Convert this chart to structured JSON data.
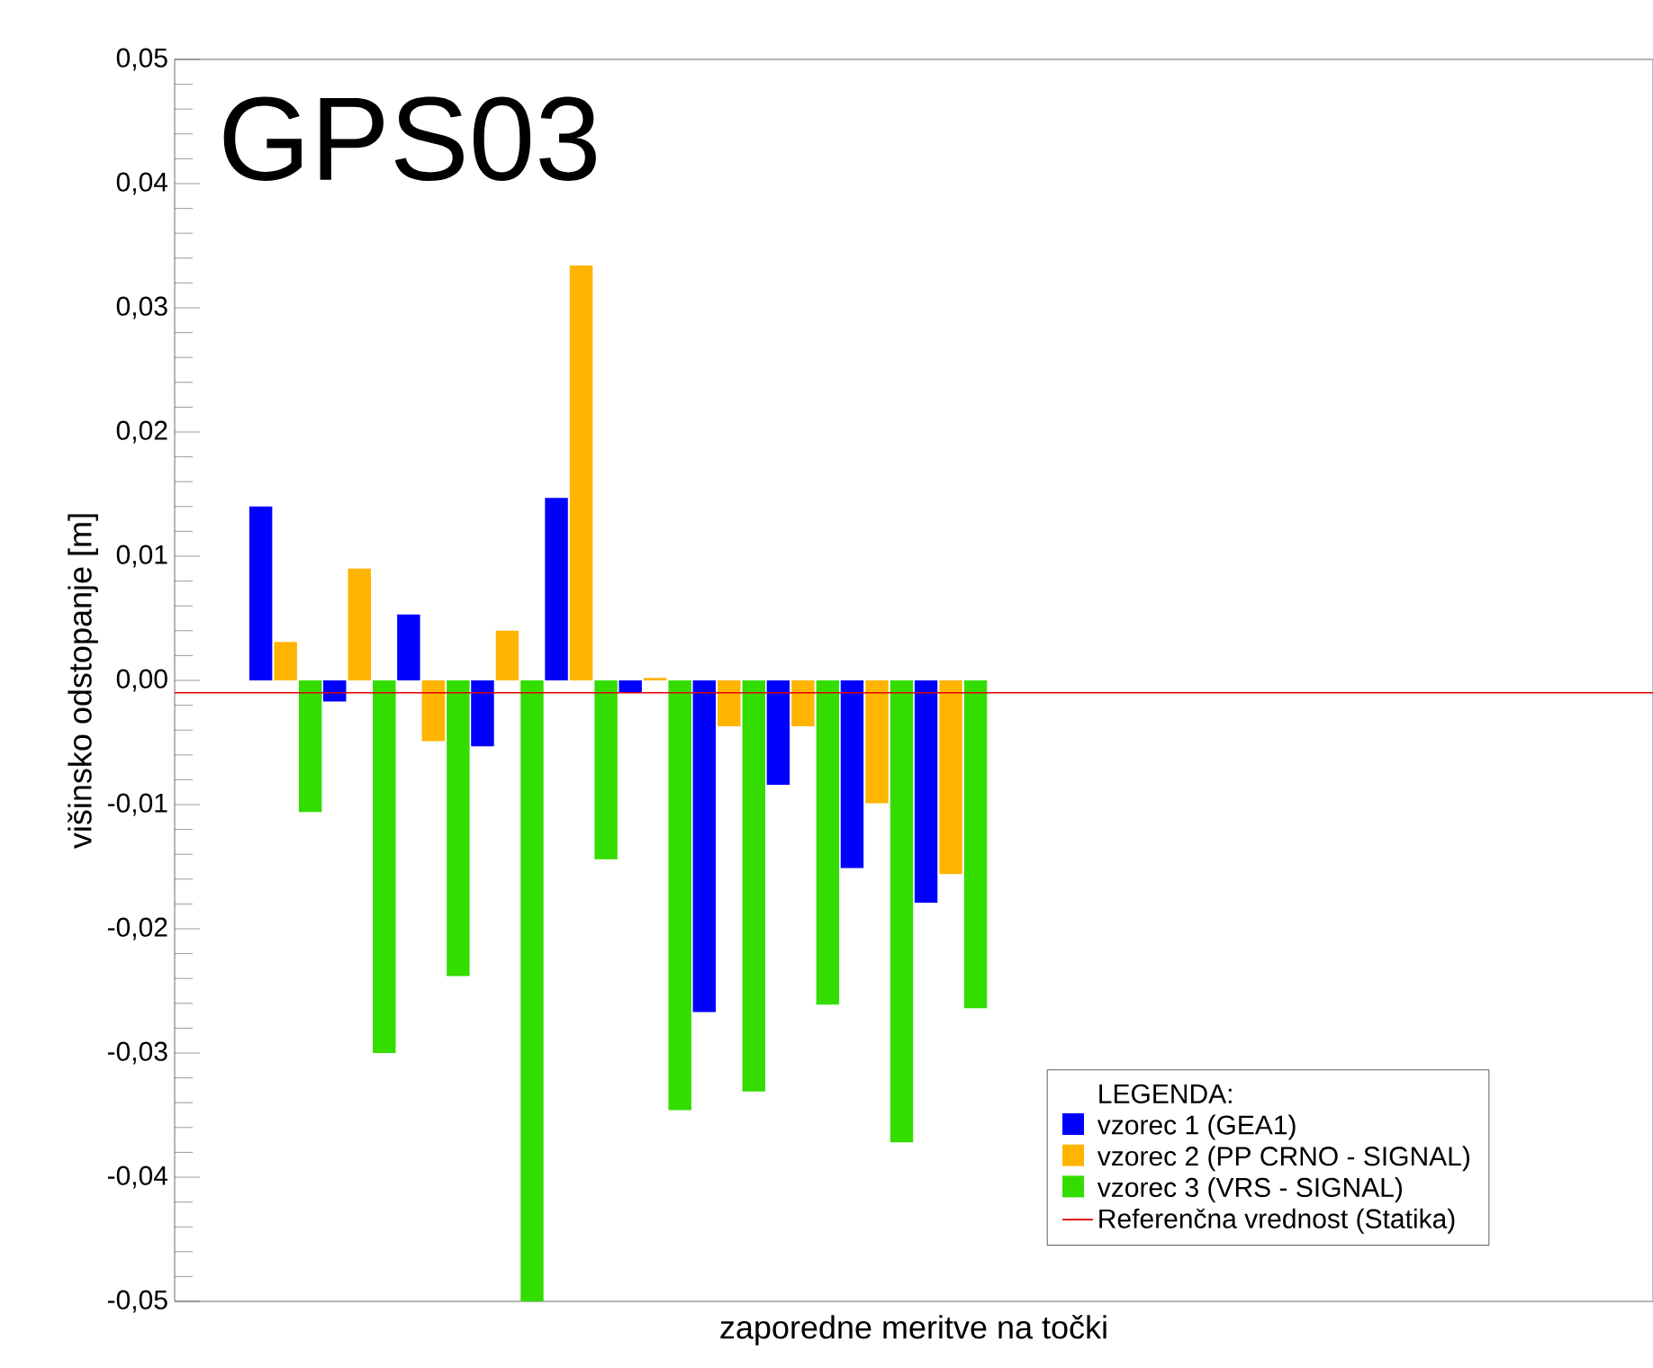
{
  "chart_data": {
    "type": "bar",
    "title": "GPS03",
    "xlabel": "zaporedne meritve na točki",
    "ylabel": "višinsko odstopanje [m]",
    "legend_title": "LEGENDA:",
    "categories": [
      null,
      null,
      null,
      null,
      null,
      null,
      null,
      null,
      null,
      null,
      null,
      null,
      null,
      null,
      null,
      null,
      null,
      null,
      null,
      null
    ],
    "series": [
      {
        "name": "vzorec 1 (GEA1)",
        "color": "#0000ff",
        "values": [
          null,
          0.014,
          -0.0017,
          0.0053,
          -0.0053,
          0.0147,
          -0.001,
          -0.0267,
          -0.0084,
          -0.0151,
          -0.0179,
          null,
          null,
          null,
          null,
          null,
          null,
          null,
          null,
          null
        ]
      },
      {
        "name": "vzorec 2 (PP CRNO - SIGNAL)",
        "color": "#ffb400",
        "values": [
          null,
          0.0031,
          0.009,
          -0.0049,
          0.004,
          0.0334,
          0.0002,
          -0.0037,
          -0.0037,
          -0.0099,
          -0.0156,
          null,
          null,
          null,
          null,
          null,
          null,
          null,
          null,
          null
        ]
      },
      {
        "name": "vzorec 3 (VRS - SIGNAL)",
        "color": "#33dd00",
        "values": [
          null,
          -0.0106,
          -0.03,
          -0.0238,
          -0.05,
          -0.0144,
          -0.0346,
          -0.0331,
          -0.0261,
          -0.0372,
          -0.0264,
          null,
          null,
          null,
          null,
          null,
          null,
          null,
          null,
          null
        ]
      }
    ],
    "ref_lines": [
      {
        "axis": "y",
        "value": -0.001,
        "label": "Referenčna vrednost (Statika)",
        "color": "#e00000"
      }
    ],
    "ylim": [
      -0.05,
      0.05
    ],
    "yticks": [
      {
        "value": -0.05,
        "label": "-0,05"
      },
      {
        "value": -0.04,
        "label": "-0,04"
      },
      {
        "value": -0.03,
        "label": "-0,03"
      },
      {
        "value": -0.02,
        "label": "-0,02"
      },
      {
        "value": -0.01,
        "label": "-0,01"
      },
      {
        "value": 0,
        "label": "0,00"
      },
      {
        "value": 0.01,
        "label": "0,01"
      },
      {
        "value": 0.02,
        "label": "0,02"
      },
      {
        "value": 0.03,
        "label": "0,03"
      },
      {
        "value": 0.04,
        "label": "0,04"
      },
      {
        "value": 0.05,
        "label": "0,05"
      }
    ],
    "tick_labels": "y",
    "grid": false,
    "legend": "bottom right"
  }
}
